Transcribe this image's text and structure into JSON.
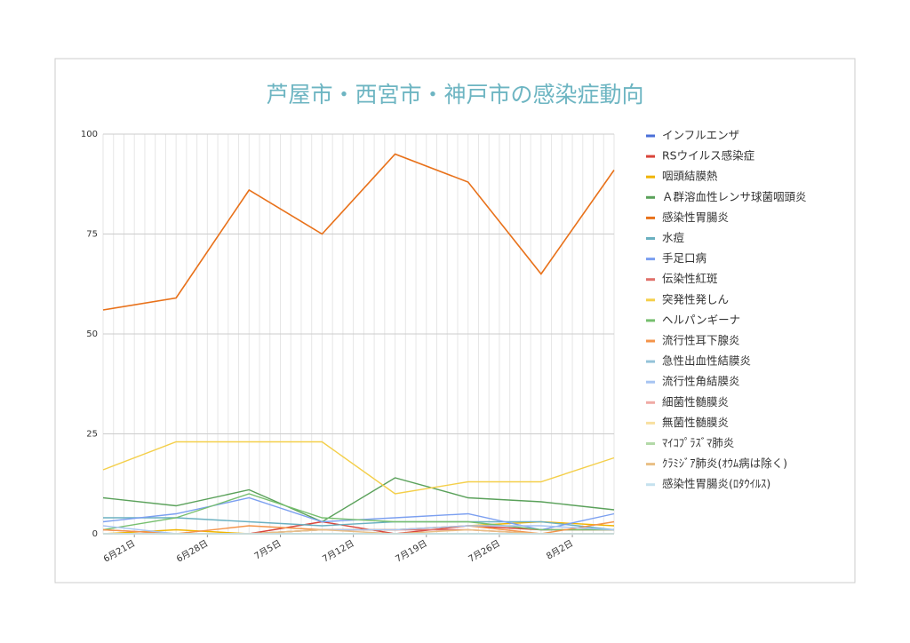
{
  "chart_data": {
    "type": "line",
    "title": "芦屋市・西宮市・神戸市の感染症動向",
    "x": [
      "6/18",
      "6/25",
      "7/2",
      "7/9",
      "7/16",
      "7/23",
      "7/30",
      "8/6"
    ],
    "xlim": [
      "6/18",
      "8/6"
    ],
    "xticks": [
      {
        "value": "6/21",
        "label": "6月21日"
      },
      {
        "value": "6/28",
        "label": "6月28日"
      },
      {
        "value": "7/5",
        "label": "7月5日"
      },
      {
        "value": "7/12",
        "label": "7月12日"
      },
      {
        "value": "7/19",
        "label": "7月19日"
      },
      {
        "value": "7/26",
        "label": "7月26日"
      },
      {
        "value": "8/2",
        "label": "8月2日"
      }
    ],
    "ylim": [
      0,
      100
    ],
    "yticks": [
      0,
      25,
      50,
      75,
      100
    ],
    "grid": true,
    "legend": "right",
    "series": [
      {
        "name": "インフルエンザ",
        "color": "#4a6fd8",
        "values": [
          0,
          0,
          0,
          0,
          0,
          0,
          0,
          0
        ]
      },
      {
        "name": "RSウイルス感染症",
        "color": "#d9443a",
        "values": [
          0,
          0,
          0,
          3,
          0,
          2,
          1,
          1
        ]
      },
      {
        "name": "咽頭結膜熱",
        "color": "#f0b400",
        "values": [
          0,
          1,
          0,
          1,
          1,
          2,
          3,
          2
        ]
      },
      {
        "name": "Ａ群溶血性レンサ球菌咽頭炎",
        "color": "#5aa15a",
        "values": [
          9,
          7,
          11,
          3,
          14,
          9,
          8,
          6
        ]
      },
      {
        "name": "感染性胃腸炎",
        "color": "#e8711a",
        "values": [
          56,
          59,
          86,
          75,
          95,
          88,
          65,
          91
        ]
      },
      {
        "name": "水痘",
        "color": "#6ab0c0",
        "values": [
          4,
          4,
          3,
          2,
          3,
          3,
          3,
          1
        ]
      },
      {
        "name": "手足口病",
        "color": "#7b9ff0",
        "values": [
          3,
          5,
          9,
          3,
          4,
          5,
          1,
          5
        ]
      },
      {
        "name": "伝染性紅斑",
        "color": "#e0706a",
        "values": [
          1,
          0,
          0,
          1,
          1,
          1,
          0,
          0
        ]
      },
      {
        "name": "突発性発しん",
        "color": "#f4cf4a",
        "values": [
          16,
          23,
          23,
          23,
          10,
          13,
          13,
          19
        ]
      },
      {
        "name": "ヘルパンギーナ",
        "color": "#76bf6e",
        "values": [
          1,
          4,
          10,
          4,
          3,
          3,
          1,
          1
        ]
      },
      {
        "name": "流行性耳下腺炎",
        "color": "#f4944a",
        "values": [
          1,
          0,
          2,
          1,
          1,
          2,
          0,
          3
        ]
      },
      {
        "name": "急性出血性結膜炎",
        "color": "#94c3d8",
        "values": [
          0,
          0,
          0,
          0,
          0,
          0,
          0,
          0
        ]
      },
      {
        "name": "流行性角結膜炎",
        "color": "#a7c4f2",
        "values": [
          2,
          0,
          0,
          1,
          1,
          2,
          2,
          1
        ]
      },
      {
        "name": "細菌性髄膜炎",
        "color": "#f0aaa5",
        "values": [
          0,
          0,
          0,
          0,
          0,
          0,
          0,
          0
        ]
      },
      {
        "name": "無菌性髄膜炎",
        "color": "#f8e0a0",
        "values": [
          0,
          0,
          0,
          0,
          0,
          0,
          0,
          0
        ]
      },
      {
        "name": "ﾏｲｺﾌﾟﾗｽﾞﾏ肺炎",
        "color": "#b3d9a8",
        "values": [
          0,
          0,
          0,
          0,
          0,
          0,
          0,
          0
        ]
      },
      {
        "name": "ｸﾗﾐｼﾞｱ肺炎(ｵｳﾑ病は除く)",
        "color": "#e9bf85",
        "values": [
          0,
          0,
          0,
          1,
          0,
          1,
          0,
          0
        ]
      },
      {
        "name": "感染性胃腸炎(ﾛﾀｳｲﾙｽ)",
        "color": "#c5e1ee",
        "values": [
          0,
          0,
          0,
          0,
          0,
          0,
          0,
          0
        ]
      }
    ]
  }
}
